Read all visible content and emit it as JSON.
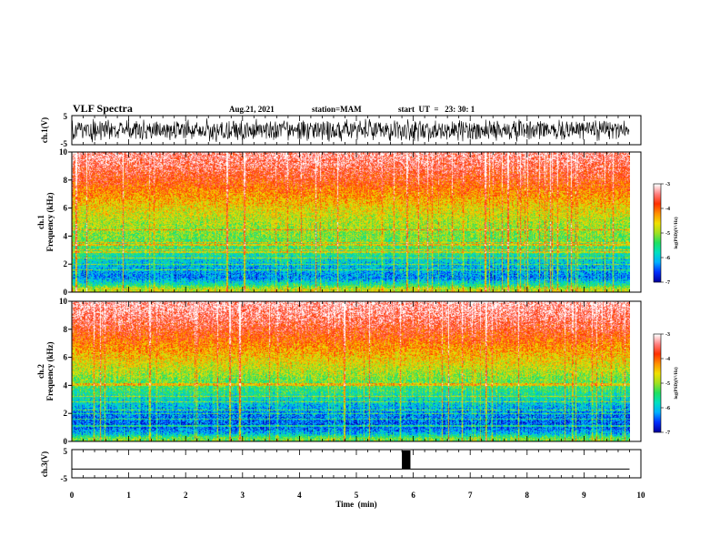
{
  "header": {
    "title": "VLF Spectra",
    "date": "Aug.21, 2021",
    "station": "station=MAM",
    "start": "start  UT  =   23: 30: 1"
  },
  "colorbar_label": "log(PSD)(V²/Hz)",
  "colorbar_ticks": [
    "-3",
    "-4",
    "-5",
    "-6",
    "-7"
  ],
  "colors": {
    "colormap": [
      "#0000a0",
      "#0030ff",
      "#00b0ff",
      "#00e0c0",
      "#20e060",
      "#a0e020",
      "#f0e000",
      "#ff9000",
      "#ff3000",
      "#ff8080",
      "#ffffff"
    ]
  },
  "chart_data": [
    {
      "id": "ch1_waveform",
      "type": "line",
      "ylabel": "ch.1(V)",
      "ylim": [
        -5,
        5
      ],
      "yticks": [
        "5",
        "-5"
      ],
      "xlim": [
        0,
        10
      ],
      "description_values": "dense noise waveform spanning approximately -4 to +4 V over 0-9.8 min"
    },
    {
      "id": "ch1_spectrogram",
      "type": "heatmap",
      "ylabel_top": "ch.1",
      "ylabel": "Frequency (kHz)",
      "ylim": [
        0,
        10
      ],
      "yticks": [
        "0",
        "2",
        "4",
        "6",
        "8",
        "10"
      ],
      "xlim": [
        0,
        10
      ],
      "data_extent_min": 9.8,
      "zlim": [
        -7,
        -3
      ],
      "zlabel": "log(PSD)(V²/Hz)",
      "profile_log_psd": [
        {
          "f": 0.2,
          "v": -4.8
        },
        {
          "f": 0.5,
          "v": -5.6
        },
        {
          "f": 1.0,
          "v": -6.3
        },
        {
          "f": 2.0,
          "v": -6.0
        },
        {
          "f": 3.0,
          "v": -5.4
        },
        {
          "f": 4.0,
          "v": -5.1
        },
        {
          "f": 5.0,
          "v": -4.9
        },
        {
          "f": 6.0,
          "v": -4.6
        },
        {
          "f": 7.0,
          "v": -4.2
        },
        {
          "f": 8.0,
          "v": -3.8
        },
        {
          "f": 9.0,
          "v": -3.5
        },
        {
          "f": 10.0,
          "v": -3.3
        }
      ]
    },
    {
      "id": "ch2_spectrogram",
      "type": "heatmap",
      "ylabel_top": "ch.2",
      "ylabel": "Frequency (kHz)",
      "ylim": [
        0,
        10
      ],
      "yticks": [
        "0",
        "2",
        "4",
        "6",
        "8",
        "10"
      ],
      "xlim": [
        0,
        10
      ],
      "data_extent_min": 9.8,
      "zlim": [
        -7,
        -3
      ],
      "zlabel": "log(PSD)(V²/Hz)",
      "profile_log_psd": [
        {
          "f": 0.2,
          "v": -5.2
        },
        {
          "f": 0.5,
          "v": -6.0
        },
        {
          "f": 1.0,
          "v": -6.5
        },
        {
          "f": 2.0,
          "v": -6.3
        },
        {
          "f": 3.0,
          "v": -5.8
        },
        {
          "f": 4.0,
          "v": -5.3
        },
        {
          "f": 5.0,
          "v": -4.9
        },
        {
          "f": 6.0,
          "v": -4.5
        },
        {
          "f": 7.0,
          "v": -4.1
        },
        {
          "f": 8.0,
          "v": -3.7
        },
        {
          "f": 9.0,
          "v": -3.4
        },
        {
          "f": 10.0,
          "v": -3.2
        }
      ]
    },
    {
      "id": "ch3_waveform",
      "type": "line",
      "ylabel": "ch.3(V)",
      "ylim": [
        -5,
        5
      ],
      "yticks": [
        "5",
        "-5"
      ],
      "xlim": [
        0,
        10
      ],
      "baseline": -1.8,
      "pulse": {
        "x_start": 5.8,
        "x_end": 5.95,
        "y_high": 5
      }
    }
  ],
  "xaxis": {
    "label": "Time  (min)",
    "ticks": [
      "0",
      "1",
      "2",
      "3",
      "4",
      "5",
      "6",
      "7",
      "8",
      "9",
      "10"
    ]
  }
}
